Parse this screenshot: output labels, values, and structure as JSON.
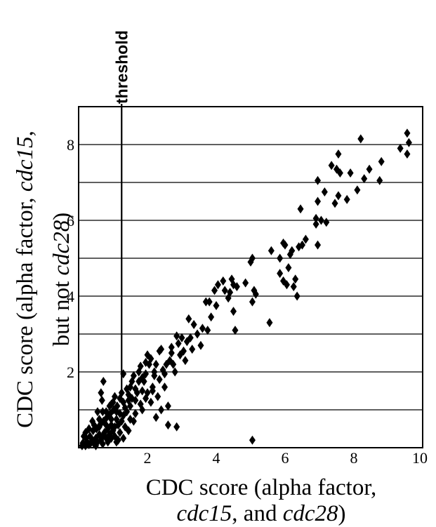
{
  "chart_data": {
    "type": "scatter",
    "title": "",
    "xlabel": {
      "line1": "CDC score (alpha factor,",
      "line2_italic_a": "cdc15",
      "line2_mid": ", and ",
      "line2_italic_b": "cdc28",
      "line2_end": ")"
    },
    "ylabel": {
      "line1_start": "CDC score (alpha factor, ",
      "line1_italic": "cdc15",
      "line1_end": ",",
      "line2_start": "but not ",
      "line2_italic": "cdc28",
      "line2_end": ")"
    },
    "xlim": [
      0,
      10
    ],
    "ylim": [
      0,
      9
    ],
    "xticks": [
      2,
      4,
      6,
      8,
      10
    ],
    "yticks": [
      2,
      4,
      6,
      8
    ],
    "horizontal_gridlines": [
      1,
      2,
      3,
      4,
      5,
      6,
      7,
      8
    ],
    "grid": "horizontal",
    "marker": "diamond",
    "threshold": {
      "x": 1.25,
      "label": "threshold"
    },
    "points": [
      [
        9.55,
        8.3
      ],
      [
        9.6,
        8.05
      ],
      [
        9.55,
        7.75
      ],
      [
        9.35,
        7.9
      ],
      [
        8.8,
        7.55
      ],
      [
        8.2,
        8.15
      ],
      [
        8.3,
        7.1
      ],
      [
        8.45,
        7.35
      ],
      [
        8.75,
        7.05
      ],
      [
        8.1,
        6.8
      ],
      [
        7.9,
        7.25
      ],
      [
        7.55,
        7.75
      ],
      [
        7.5,
        7.35
      ],
      [
        7.35,
        7.45
      ],
      [
        7.6,
        7.25
      ],
      [
        7.8,
        6.55
      ],
      [
        7.45,
        6.45
      ],
      [
        7.55,
        6.65
      ],
      [
        7.15,
        6.75
      ],
      [
        7.2,
        5.95
      ],
      [
        6.95,
        7.05
      ],
      [
        6.95,
        6.5
      ],
      [
        6.9,
        6.05
      ],
      [
        6.9,
        5.9
      ],
      [
        7.05,
        6.0
      ],
      [
        6.95,
        5.35
      ],
      [
        6.45,
        6.3
      ],
      [
        6.6,
        5.5
      ],
      [
        6.5,
        5.35
      ],
      [
        6.4,
        5.3
      ],
      [
        6.2,
        5.2
      ],
      [
        6.15,
        5.1
      ],
      [
        6.25,
        4.25
      ],
      [
        6.3,
        4.45
      ],
      [
        6.1,
        4.75
      ],
      [
        6.0,
        5.35
      ],
      [
        5.95,
        5.4
      ],
      [
        5.6,
        5.2
      ],
      [
        5.85,
        5.0
      ],
      [
        5.95,
        4.4
      ],
      [
        6.05,
        4.3
      ],
      [
        5.85,
        4.6
      ],
      [
        6.35,
        4.0
      ],
      [
        5.55,
        3.3
      ],
      [
        5.1,
        4.15
      ],
      [
        5.15,
        4.05
      ],
      [
        5.0,
        4.9
      ],
      [
        5.05,
        3.85
      ],
      [
        4.85,
        4.35
      ],
      [
        5.05,
        5.0
      ],
      [
        4.45,
        4.45
      ],
      [
        4.5,
        4.3
      ],
      [
        4.4,
        4.1
      ],
      [
        4.2,
        4.4
      ],
      [
        4.05,
        4.3
      ],
      [
        3.95,
        4.15
      ],
      [
        3.8,
        3.85
      ],
      [
        3.7,
        3.85
      ],
      [
        4.0,
        3.75
      ],
      [
        4.25,
        4.15
      ],
      [
        4.35,
        3.95
      ],
      [
        4.6,
        4.25
      ],
      [
        4.5,
        3.6
      ],
      [
        4.55,
        3.1
      ],
      [
        3.85,
        3.45
      ],
      [
        3.6,
        3.15
      ],
      [
        3.45,
        3.0
      ],
      [
        3.35,
        3.25
      ],
      [
        3.2,
        3.4
      ],
      [
        3.15,
        2.8
      ],
      [
        3.0,
        2.9
      ],
      [
        2.9,
        2.75
      ],
      [
        2.85,
        2.95
      ],
      [
        2.7,
        2.5
      ],
      [
        2.55,
        2.2
      ],
      [
        2.45,
        2.05
      ],
      [
        2.35,
        1.8
      ],
      [
        2.25,
        2.2
      ],
      [
        2.2,
        2.0
      ],
      [
        2.15,
        1.6
      ],
      [
        2.05,
        2.2
      ],
      [
        1.95,
        1.95
      ],
      [
        1.9,
        1.75
      ],
      [
        1.85,
        1.5
      ],
      [
        1.75,
        1.75
      ],
      [
        1.7,
        1.45
      ],
      [
        1.65,
        1.25
      ],
      [
        1.55,
        1.3
      ],
      [
        1.5,
        1.1
      ],
      [
        1.45,
        1.25
      ],
      [
        1.4,
        0.95
      ],
      [
        1.35,
        1.05
      ],
      [
        1.3,
        0.85
      ],
      [
        1.25,
        0.7
      ],
      [
        1.2,
        0.9
      ],
      [
        1.15,
        0.6
      ],
      [
        1.1,
        0.75
      ],
      [
        1.05,
        0.55
      ],
      [
        1.0,
        0.45
      ],
      [
        0.95,
        0.6
      ],
      [
        0.9,
        0.35
      ],
      [
        0.85,
        0.5
      ],
      [
        0.8,
        0.25
      ],
      [
        0.75,
        0.4
      ],
      [
        0.7,
        0.3
      ],
      [
        0.65,
        0.2
      ],
      [
        0.6,
        0.35
      ],
      [
        0.55,
        0.15
      ],
      [
        0.5,
        0.25
      ],
      [
        0.45,
        0.1
      ],
      [
        0.4,
        0.2
      ],
      [
        0.35,
        0.12
      ],
      [
        0.3,
        0.08
      ],
      [
        0.25,
        0.15
      ],
      [
        0.2,
        0.05
      ],
      [
        0.15,
        0.1
      ],
      [
        0.1,
        0.05
      ],
      [
        0.12,
        0.12
      ],
      [
        0.22,
        0.25
      ],
      [
        0.33,
        0.3
      ],
      [
        0.42,
        0.45
      ],
      [
        0.52,
        0.5
      ],
      [
        0.62,
        0.6
      ],
      [
        0.72,
        0.7
      ],
      [
        0.82,
        0.8
      ],
      [
        0.92,
        0.9
      ],
      [
        1.02,
        1.0
      ],
      [
        1.12,
        1.1
      ],
      [
        0.68,
        1.25
      ],
      [
        0.72,
        1.75
      ],
      [
        0.65,
        1.45
      ],
      [
        1.3,
        1.95
      ],
      [
        0.9,
        1.1
      ],
      [
        0.55,
        0.95
      ],
      [
        1.05,
        1.35
      ],
      [
        1.5,
        1.6
      ],
      [
        1.8,
        2.15
      ],
      [
        2.0,
        1.45
      ],
      [
        2.3,
        1.35
      ],
      [
        2.6,
        1.1
      ],
      [
        2.4,
        1.0
      ],
      [
        2.25,
        0.8
      ],
      [
        2.85,
        0.55
      ],
      [
        2.6,
        0.6
      ],
      [
        1.45,
        0.45
      ],
      [
        1.6,
        0.7
      ],
      [
        1.85,
        1.0
      ],
      [
        2.1,
        1.2
      ],
      [
        1.3,
        0.25
      ],
      [
        1.1,
        0.15
      ],
      [
        5.05,
        0.2
      ],
      [
        2.5,
        1.6
      ],
      [
        2.8,
        2.0
      ],
      [
        3.1,
        2.3
      ],
      [
        3.3,
        2.6
      ],
      [
        3.55,
        2.7
      ],
      [
        3.75,
        3.1
      ],
      [
        2.95,
        2.45
      ],
      [
        2.65,
        2.3
      ],
      [
        2.4,
        2.6
      ],
      [
        2.1,
        2.35
      ],
      [
        1.95,
        2.25
      ],
      [
        1.6,
        1.9
      ],
      [
        1.4,
        1.55
      ],
      [
        1.2,
        1.3
      ],
      [
        0.95,
        1.15
      ],
      [
        0.8,
        0.95
      ],
      [
        0.6,
        0.75
      ],
      [
        0.45,
        0.6
      ],
      [
        0.3,
        0.5
      ],
      [
        0.2,
        0.4
      ],
      [
        0.15,
        0.3
      ],
      [
        0.4,
        0.7
      ],
      [
        0.7,
        0.95
      ],
      [
        1.0,
        1.2
      ],
      [
        1.25,
        1.45
      ],
      [
        1.55,
        1.75
      ],
      [
        1.75,
        2.0
      ],
      [
        2.0,
        2.45
      ],
      [
        2.35,
        2.55
      ],
      [
        2.7,
        2.65
      ],
      [
        3.05,
        2.55
      ],
      [
        3.25,
        2.9
      ],
      [
        1.05,
        0.3
      ],
      [
        1.2,
        0.4
      ],
      [
        1.35,
        0.55
      ],
      [
        1.5,
        0.75
      ],
      [
        1.65,
        0.9
      ],
      [
        1.8,
        1.15
      ],
      [
        1.95,
        1.3
      ],
      [
        2.15,
        1.5
      ],
      [
        0.5,
        0.05
      ],
      [
        0.7,
        0.1
      ],
      [
        0.85,
        0.15
      ],
      [
        0.95,
        0.25
      ],
      [
        1.15,
        0.2
      ],
      [
        0.6,
        0.55
      ],
      [
        0.8,
        0.6
      ],
      [
        0.95,
        0.75
      ],
      [
        1.1,
        0.95
      ],
      [
        1.3,
        1.2
      ],
      [
        1.45,
        1.4
      ],
      [
        1.65,
        1.55
      ],
      [
        1.85,
        1.85
      ],
      [
        2.2,
        1.9
      ],
      [
        2.5,
        1.95
      ],
      [
        2.75,
        2.2
      ]
    ]
  }
}
